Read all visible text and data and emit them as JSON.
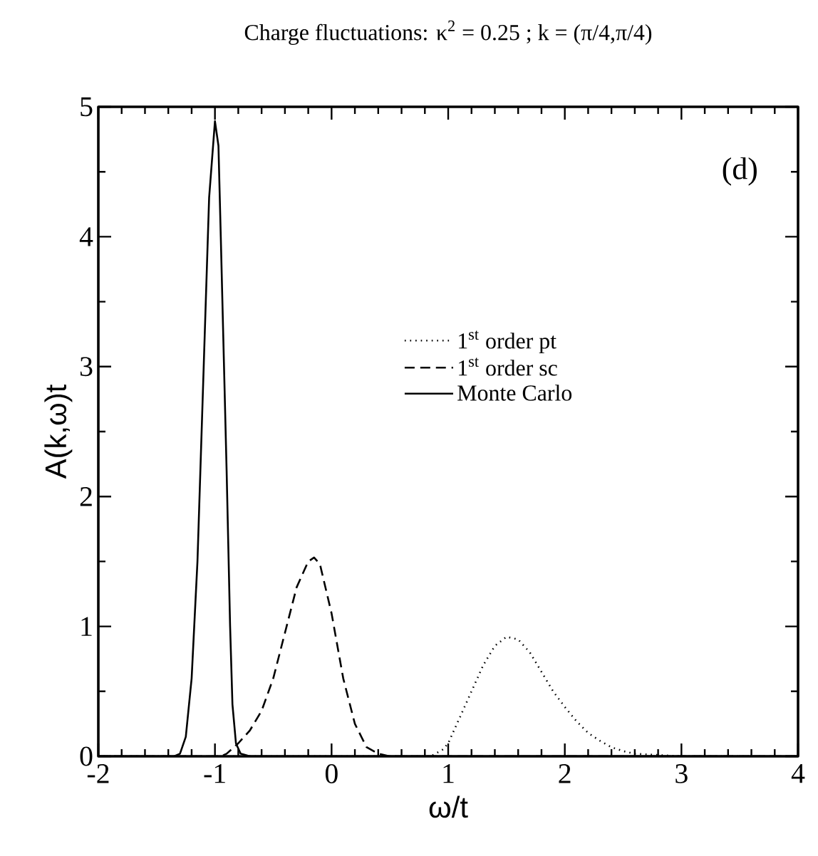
{
  "chart_data": {
    "type": "line",
    "title": "Charge fluctuations:  κ$^{2}$ = 0.25 ; k = (π/4,π/4)",
    "xlabel": "ω/t",
    "ylabel": "A(k,ω)t",
    "annotations": [
      "(d)"
    ],
    "xlim": [
      -2,
      4
    ],
    "ylim": [
      0,
      5
    ],
    "xticks": [
      -2,
      -1,
      0,
      1,
      2,
      3,
      4
    ],
    "yticks": [
      0,
      1,
      2,
      3,
      4,
      5
    ],
    "legend": "right",
    "grid": false,
    "series": [
      {
        "name": "1$^{st}$ order pt",
        "color": "#000000",
        "line_style": "dotted",
        "x": [
          -2,
          0.85,
          0.95,
          1.0,
          1.1,
          1.2,
          1.3,
          1.4,
          1.5,
          1.6,
          1.7,
          1.8,
          1.9,
          2.0,
          2.1,
          2.2,
          2.3,
          2.4,
          2.5,
          2.6,
          2.8,
          3.0,
          4
        ],
        "values": [
          0,
          0,
          0.05,
          0.1,
          0.3,
          0.5,
          0.7,
          0.85,
          0.92,
          0.9,
          0.8,
          0.65,
          0.5,
          0.38,
          0.27,
          0.18,
          0.12,
          0.07,
          0.04,
          0.02,
          0.01,
          0,
          0
        ]
      },
      {
        "name": "1$^{st}$ order sc",
        "color": "#000000",
        "line_style": "dashed",
        "x": [
          -2,
          -0.95,
          -0.9,
          -0.8,
          -0.7,
          -0.6,
          -0.5,
          -0.4,
          -0.3,
          -0.2,
          -0.15,
          -0.1,
          0,
          0.1,
          0.2,
          0.3,
          0.4,
          0.5,
          4
        ],
        "values": [
          0,
          0,
          0.02,
          0.1,
          0.2,
          0.35,
          0.6,
          0.95,
          1.3,
          1.5,
          1.53,
          1.48,
          1.1,
          0.6,
          0.25,
          0.07,
          0.02,
          0,
          0
        ]
      },
      {
        "name": "Monte Carlo",
        "color": "#000000",
        "line_style": "solid",
        "x": [
          -2,
          -1.35,
          -1.3,
          -1.25,
          -1.2,
          -1.15,
          -1.1,
          -1.05,
          -1.0,
          -0.97,
          -0.95,
          -0.9,
          -0.87,
          -0.85,
          -0.82,
          -0.78,
          -0.7,
          4
        ],
        "values": [
          0,
          0,
          0.02,
          0.15,
          0.6,
          1.5,
          2.9,
          4.3,
          4.89,
          4.7,
          4.0,
          2.2,
          1.0,
          0.4,
          0.1,
          0.02,
          0,
          0
        ]
      }
    ]
  }
}
